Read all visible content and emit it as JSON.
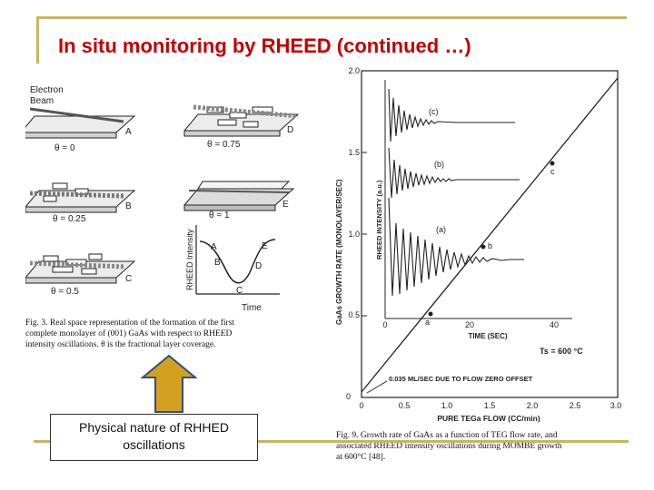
{
  "slide": {
    "title": "In situ monitoring by RHEED (continued …)",
    "caption_line1": "Physical nature of RHHED",
    "caption_line2": "oscillations"
  },
  "left_figure": {
    "electron_label_1": "Electron",
    "electron_label_2": "Beam",
    "panels": [
      {
        "theta_label": "θ = 0",
        "letter": "A"
      },
      {
        "theta_label": "θ = 0.75",
        "letter": "D"
      },
      {
        "theta_label": "θ = 0.25",
        "letter": "B"
      },
      {
        "theta_label": "θ = 1",
        "letter": "E"
      },
      {
        "theta_label": "θ = 0.5",
        "letter": "C"
      }
    ],
    "plot_ylabel": "RHEED Intensity",
    "plot_xlabel": "Time",
    "plot_letters": [
      "A",
      "B",
      "C",
      "D",
      "E"
    ],
    "caption_1": "Fig. 3.   Real space representation of the formation of the first",
    "caption_2": "complete monolayer of (001) GaAs with respect to RHEED",
    "caption_3": "intensity oscillations. θ is the fractional layer coverage."
  },
  "right_figure": {
    "y_axis_label": "GaAs GROWTH RATE (MONOLAYER/SEC)",
    "x_axis_label": "PURE TEGa FLOW (CC/min)",
    "y_ticks": [
      "0",
      "0.5",
      "1.0",
      "1.5",
      "2.0"
    ],
    "x_ticks": [
      "0",
      "0.5",
      "1.0",
      "1.5",
      "2.0",
      "2.5",
      "3.0"
    ],
    "inset_ylabel": "RHEED INTENSITY (a.u.)",
    "inset_xlabel": "TIME (SEC)",
    "inset_x_ticks": [
      "0",
      "20",
      "40"
    ],
    "inset_trace_labels": [
      "(c)",
      "(b)",
      "(a)"
    ],
    "point_labels": [
      "c",
      "b",
      "a"
    ],
    "temperature_label": "Ts = 600 °C",
    "offset_label": "0.035 ML/SEC DUE TO FLOW ZERO OFFSET",
    "caption_1": "Fig. 9.   Growth rate of GaAs as a function of TEG flow rate, and",
    "caption_2": "associated RHEED intensity oscillations during MOMBE growth",
    "caption_3": "at 600°C [48]."
  },
  "colors": {
    "title": "#c00000",
    "accent_line": "#c8b560",
    "arrow_fill": "#d4a020"
  }
}
